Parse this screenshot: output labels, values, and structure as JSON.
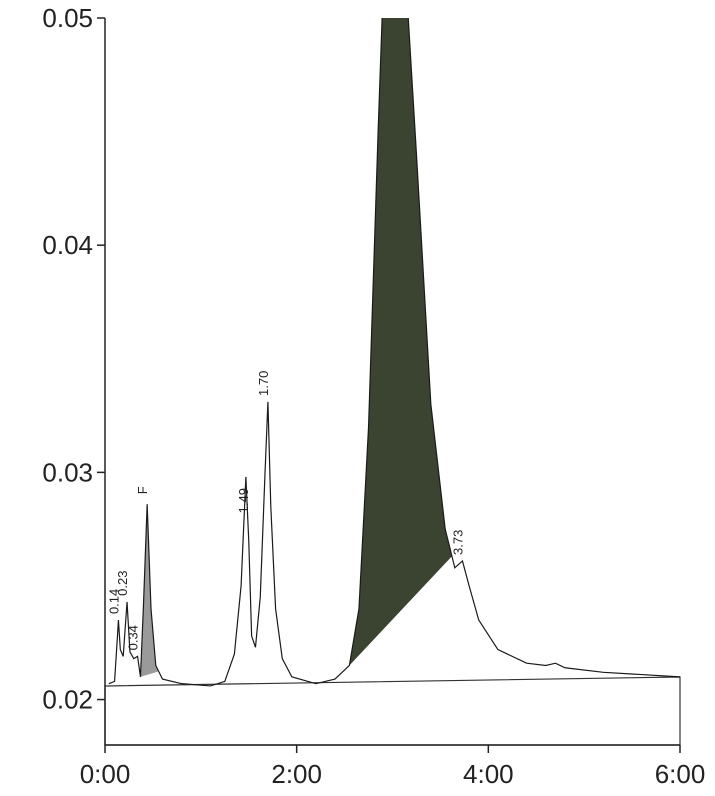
{
  "chart_data": {
    "type": "line",
    "series": [
      {
        "color": "#1a1a1a",
        "x": [
          0.04,
          0.1,
          0.13,
          0.14,
          0.16,
          0.19,
          0.23,
          0.26,
          0.3,
          0.34,
          0.37,
          0.4,
          0.44,
          0.48,
          0.53,
          0.6,
          0.8,
          1.1,
          1.25,
          1.35,
          1.42,
          1.47,
          1.5,
          1.53,
          1.57,
          1.62,
          1.67,
          1.7,
          1.73,
          1.78,
          1.85,
          1.95,
          2.2,
          2.4,
          2.55,
          2.65,
          2.75,
          2.85,
          2.9,
          3.15,
          3.25,
          3.4,
          3.55,
          3.65,
          3.73,
          3.8,
          3.9,
          4.1,
          4.4,
          4.6,
          4.7,
          4.8,
          5.2,
          5.6,
          6.0
        ],
        "values": [
          0.0207,
          0.0208,
          0.0228,
          0.0235,
          0.0222,
          0.0219,
          0.0243,
          0.0221,
          0.0218,
          0.0219,
          0.021,
          0.024,
          0.0286,
          0.024,
          0.0215,
          0.0209,
          0.0207,
          0.0206,
          0.0208,
          0.022,
          0.025,
          0.0298,
          0.027,
          0.0228,
          0.0223,
          0.0245,
          0.03,
          0.0331,
          0.0285,
          0.024,
          0.0218,
          0.021,
          0.0207,
          0.0209,
          0.0215,
          0.024,
          0.032,
          0.045,
          0.051,
          0.051,
          0.044,
          0.033,
          0.0275,
          0.0258,
          0.0261,
          0.025,
          0.0235,
          0.0222,
          0.0216,
          0.0215,
          0.0216,
          0.0214,
          0.0212,
          0.0211,
          0.021
        ]
      }
    ],
    "fill_regions": [
      {
        "from": 0.37,
        "to": 0.56,
        "color": "#9a9a9a"
      },
      {
        "from": 2.55,
        "to": 3.62,
        "color": "#3b4431"
      }
    ],
    "peak_labels": [
      {
        "value": 0.14,
        "label": "0.14"
      },
      {
        "value": 0.23,
        "label": "0.23"
      },
      {
        "value": 0.34,
        "label": "0.34"
      },
      {
        "value": 1.49,
        "label": "1.49"
      },
      {
        "value": 1.7,
        "label": "1.70"
      },
      {
        "value": 3.73,
        "label": "3.73"
      }
    ],
    "annotations": [
      {
        "x": 0.44,
        "text": "F"
      }
    ],
    "xlim": [
      0,
      6
    ],
    "xticks": [
      {
        "value": 0,
        "label": "0:00"
      },
      {
        "value": 2,
        "label": "2:00"
      },
      {
        "value": 4,
        "label": "4:00"
      },
      {
        "value": 6,
        "label": "6:00"
      }
    ],
    "ylim": [
      0.018,
      0.05
    ],
    "yticks": [
      0.02,
      0.03,
      0.04,
      0.05
    ]
  }
}
